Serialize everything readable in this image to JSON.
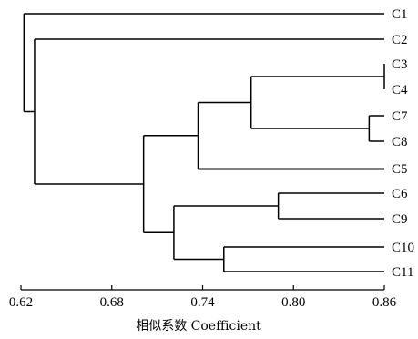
{
  "chart_data": {
    "type": "dendrogram",
    "xlabel": "相似系数 Coefficient",
    "xlim": [
      0.62,
      0.86
    ],
    "ticks": [
      {
        "value": 0.62,
        "label": "0.62"
      },
      {
        "value": 0.68,
        "label": "0.68"
      },
      {
        "value": 0.74,
        "label": "0.74"
      },
      {
        "value": 0.8,
        "label": "0.80"
      },
      {
        "value": 0.86,
        "label": "0.86"
      }
    ],
    "leaves": [
      "C1",
      "C2",
      "C3",
      "C4",
      "C7",
      "C8",
      "C5",
      "C6",
      "C9",
      "C10",
      "C11"
    ],
    "merges": [
      {
        "members": [
          "C3",
          "C4"
        ],
        "coefficient": 0.86
      },
      {
        "members": [
          "C7",
          "C8"
        ],
        "coefficient": 0.85
      },
      {
        "members": [
          "C3C4",
          "C7C8"
        ],
        "coefficient": 0.772
      },
      {
        "members": [
          "C3C4C7C8",
          "C5"
        ],
        "coefficient": 0.737
      },
      {
        "members": [
          "C6",
          "C9"
        ],
        "coefficient": 0.79
      },
      {
        "members": [
          "C10",
          "C11"
        ],
        "coefficient": 0.754
      },
      {
        "members": [
          "C6C9",
          "C10C11"
        ],
        "coefficient": 0.721
      },
      {
        "members": [
          "C3C4C7C8C5",
          "C6C9C10C11"
        ],
        "coefficient": 0.701
      },
      {
        "members": [
          "C2",
          "rest"
        ],
        "coefficient": 0.629
      },
      {
        "members": [
          "C1",
          "all"
        ],
        "coefficient": 0.622
      }
    ]
  }
}
